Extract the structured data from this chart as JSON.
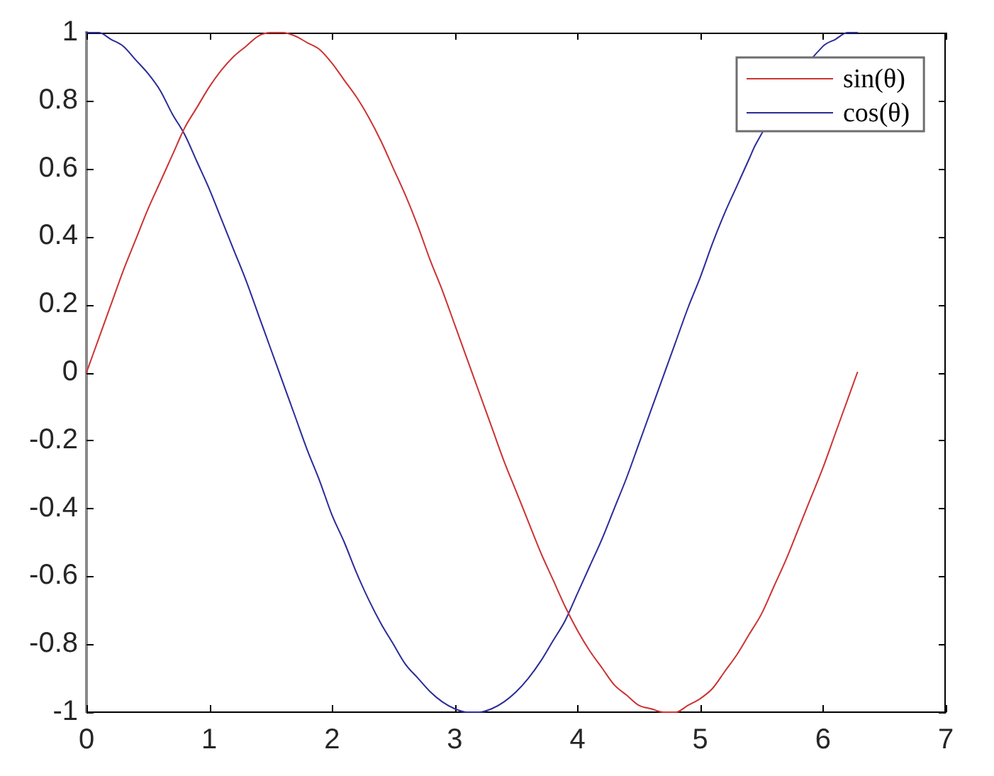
{
  "chart_data": {
    "type": "line",
    "x": [
      0,
      0.1,
      0.2,
      0.3,
      0.4,
      0.5,
      0.6,
      0.7,
      0.8,
      0.9,
      1.0,
      1.1,
      1.2,
      1.3,
      1.4,
      1.5,
      1.6,
      1.7,
      1.8,
      1.9,
      2.0,
      2.1,
      2.2,
      2.3,
      2.4,
      2.5,
      2.6,
      2.7,
      2.8,
      2.9,
      3.0,
      3.1,
      3.2,
      3.3,
      3.4,
      3.5,
      3.6,
      3.7,
      3.8,
      3.9,
      4.0,
      4.1,
      4.2,
      4.3,
      4.4,
      4.5,
      4.6,
      4.7,
      4.8,
      4.9,
      5.0,
      5.1,
      5.2,
      5.3,
      5.4,
      5.5,
      5.6,
      5.7,
      5.8,
      5.9,
      6.0,
      6.1,
      6.2,
      6.28
    ],
    "series": [
      {
        "name": "sin(θ)",
        "color": "#cc3333",
        "values": [
          0,
          0.1,
          0.2,
          0.3,
          0.39,
          0.48,
          0.56,
          0.64,
          0.72,
          0.78,
          0.84,
          0.89,
          0.93,
          0.96,
          0.99,
          1.0,
          1.0,
          0.99,
          0.97,
          0.95,
          0.91,
          0.86,
          0.81,
          0.75,
          0.68,
          0.6,
          0.52,
          0.43,
          0.33,
          0.24,
          0.14,
          0.04,
          -0.06,
          -0.16,
          -0.26,
          -0.35,
          -0.44,
          -0.53,
          -0.61,
          -0.69,
          -0.76,
          -0.82,
          -0.87,
          -0.92,
          -0.95,
          -0.98,
          -0.99,
          -1.0,
          -1.0,
          -0.98,
          -0.96,
          -0.93,
          -0.88,
          -0.83,
          -0.77,
          -0.71,
          -0.63,
          -0.55,
          -0.46,
          -0.37,
          -0.28,
          -0.18,
          -0.08,
          0
        ]
      },
      {
        "name": "cos(θ)",
        "color": "#2b2b99",
        "x": [
          0,
          0.1,
          0.2,
          0.3,
          0.4,
          0.5,
          0.6,
          0.7,
          0.8,
          0.9,
          1.0,
          1.1,
          1.2,
          1.3,
          1.4,
          1.5,
          1.6,
          1.7,
          1.8,
          1.9,
          2.0,
          2.1,
          2.2,
          2.3,
          2.4,
          2.5,
          2.6,
          2.7,
          2.8,
          2.9,
          3.0,
          3.1,
          3.2,
          3.3,
          3.4,
          3.5,
          3.6,
          3.7,
          3.8,
          3.9,
          4.0,
          4.1,
          4.2,
          4.3,
          4.4,
          4.5,
          4.6,
          4.7,
          4.8,
          4.9,
          5.0,
          5.1,
          5.2,
          5.3,
          5.4,
          5.45,
          6.0,
          6.1,
          6.2,
          6.28
        ],
        "values": [
          1.0,
          1.0,
          0.98,
          0.96,
          0.92,
          0.88,
          0.83,
          0.76,
          0.7,
          0.62,
          0.54,
          0.45,
          0.36,
          0.27,
          0.17,
          0.07,
          -0.03,
          -0.13,
          -0.23,
          -0.32,
          -0.42,
          -0.5,
          -0.59,
          -0.67,
          -0.74,
          -0.8,
          -0.86,
          -0.9,
          -0.94,
          -0.97,
          -0.99,
          -1.0,
          -1.0,
          -0.99,
          -0.97,
          -0.94,
          -0.9,
          -0.85,
          -0.79,
          -0.73,
          -0.65,
          -0.57,
          -0.49,
          -0.4,
          -0.31,
          -0.21,
          -0.11,
          -0.01,
          0.09,
          0.19,
          0.28,
          0.38,
          0.47,
          0.55,
          0.63,
          0.67,
          0.96,
          0.98,
          1.0,
          1.0
        ]
      }
    ],
    "xlim": [
      0,
      7
    ],
    "xticks": [
      0,
      1,
      2,
      3,
      4,
      5,
      6,
      7
    ],
    "ylim": [
      -1,
      1
    ],
    "yticks": [
      -1,
      -0.8,
      -0.6,
      -0.4,
      -0.2,
      0,
      0.2,
      0.4,
      0.6,
      0.8,
      1
    ],
    "legend": "top right"
  }
}
